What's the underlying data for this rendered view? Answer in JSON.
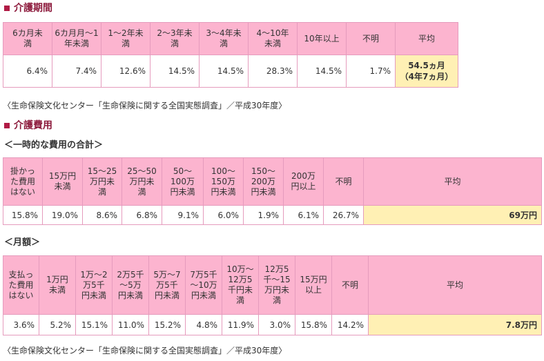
{
  "section1": {
    "title": "介護期間",
    "headers": [
      "6カ月未満",
      "6カ月月～1年未満",
      "1～2年未満",
      "2～3年未満",
      "3～4年未満",
      "4～10年未満",
      "10年以上",
      "不明",
      "平均"
    ],
    "values": [
      "6.4%",
      "7.4%",
      "12.6%",
      "14.5%",
      "14.5%",
      "28.3%",
      "14.5%",
      "1.7%"
    ],
    "average_line1": "54.5ヵ月",
    "average_line2": "（4年7ヵ月）",
    "source": "〈生命保険文化センター「生命保険に関する全国実態調査」／平成30年度〉"
  },
  "section2": {
    "title": "介護費用",
    "onetime": {
      "subtitle": "＜一時的な費用の合計＞",
      "headers": [
        "掛かった費用はない",
        "15万円未満",
        "15～25万円未満",
        "25～50万円未満",
        "50～100万円未満",
        "100～150万円未満",
        "150～200万円未満",
        "200万円以上",
        "不明",
        "平均"
      ],
      "values": [
        "15.8%",
        "19.0%",
        "8.6%",
        "6.8%",
        "9.1%",
        "6.0%",
        "1.9%",
        "6.1%",
        "26.7%"
      ],
      "average": "69万円"
    },
    "monthly": {
      "subtitle": "＜月額＞",
      "headers": [
        "支払った費用はない",
        "1万円未満",
        "1万～2万5千円未満",
        "2万5千～5万円未満",
        "5万～7万5千円未満",
        "7万5千～10万円未満",
        "10万～12万5千円未満",
        "12万5千～15万円未満",
        "15万円以上",
        "不明",
        "平均"
      ],
      "values": [
        "3.6%",
        "5.2%",
        "15.1%",
        "11.0%",
        "15.2%",
        "4.8%",
        "11.9%",
        "3.0%",
        "15.8%",
        "14.2%"
      ],
      "average": "7.8万円"
    },
    "source": "〈生命保険文化センター「生命保険に関する全国実態調査」／平成30年度〉"
  }
}
